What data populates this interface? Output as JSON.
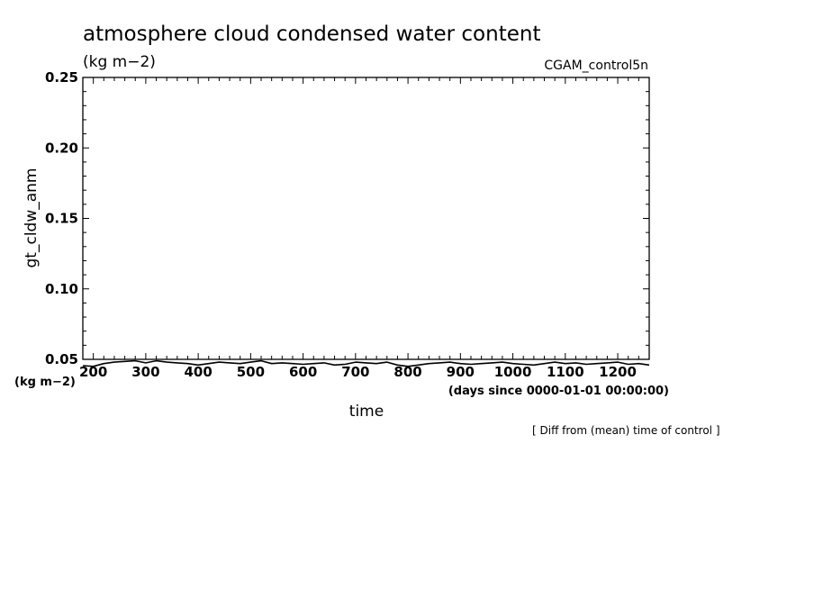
{
  "chart_data": {
    "type": "line",
    "title": "atmosphere cloud condensed water content",
    "units": "(kg m−2)",
    "run_label": "CGAM_control5n",
    "ylabel": "gt_cldw_anm",
    "y_unit_label": "(kg m−2)",
    "xlabel": "time",
    "x_unit_label": "(days since 0000-01-01 00:00:00)",
    "note": "[ Diff from (mean) time of control ]",
    "xlim": [
      180,
      1260
    ],
    "ylim": [
      0.05,
      0.25
    ],
    "xticks": [
      200,
      300,
      400,
      500,
      600,
      700,
      800,
      900,
      1000,
      1100,
      1200
    ],
    "yticks": [
      "0.05",
      "0.10",
      "0.15",
      "0.20",
      "0.25"
    ],
    "grid": false,
    "series": [
      {
        "color": "#000000",
        "x": [
          180,
          200,
          220,
          240,
          260,
          280,
          300,
          320,
          340,
          360,
          380,
          400,
          420,
          440,
          460,
          480,
          500,
          520,
          540,
          560,
          580,
          600,
          620,
          640,
          660,
          680,
          700,
          720,
          740,
          760,
          780,
          800,
          820,
          840,
          860,
          880,
          900,
          920,
          940,
          960,
          980,
          1000,
          1020,
          1040,
          1060,
          1080,
          1100,
          1120,
          1140,
          1160,
          1180,
          1200,
          1220,
          1240,
          1260
        ],
        "y": [
          0.0455,
          0.045,
          0.047,
          0.048,
          0.0485,
          0.049,
          0.0475,
          0.049,
          0.048,
          0.0475,
          0.047,
          0.046,
          0.047,
          0.048,
          0.0475,
          0.047,
          0.048,
          0.049,
          0.047,
          0.0475,
          0.047,
          0.0465,
          0.047,
          0.0475,
          0.046,
          0.0465,
          0.048,
          0.0475,
          0.047,
          0.048,
          0.046,
          0.045,
          0.046,
          0.047,
          0.0475,
          0.048,
          0.047,
          0.0465,
          0.047,
          0.0475,
          0.048,
          0.047,
          0.0465,
          0.046,
          0.047,
          0.048,
          0.047,
          0.0475,
          0.0465,
          0.047,
          0.0475,
          0.048,
          0.0465,
          0.047,
          0.046
        ]
      }
    ]
  }
}
